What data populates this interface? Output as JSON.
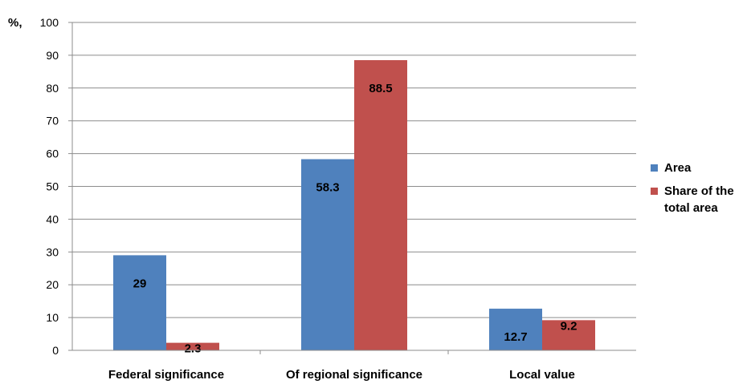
{
  "chart_data": {
    "type": "bar",
    "ylabel": "%,",
    "ylim": [
      0,
      100
    ],
    "yticks": [
      0,
      10,
      20,
      30,
      40,
      50,
      60,
      70,
      80,
      90,
      100
    ],
    "categories": [
      "Federal significance",
      "Of regional significance",
      "Local value"
    ],
    "series": [
      {
        "name": "Area",
        "values": [
          29,
          58.3,
          12.7
        ],
        "labels": [
          "29",
          "58.3",
          "12.7"
        ],
        "color": "#4f81bd"
      },
      {
        "name": "Share of the total area",
        "values": [
          2.3,
          88.5,
          9.2
        ],
        "labels": [
          "2.3",
          "88.5",
          "9.2"
        ],
        "color": "#c0504d"
      }
    ],
    "grid": true,
    "legend_position": "right"
  }
}
